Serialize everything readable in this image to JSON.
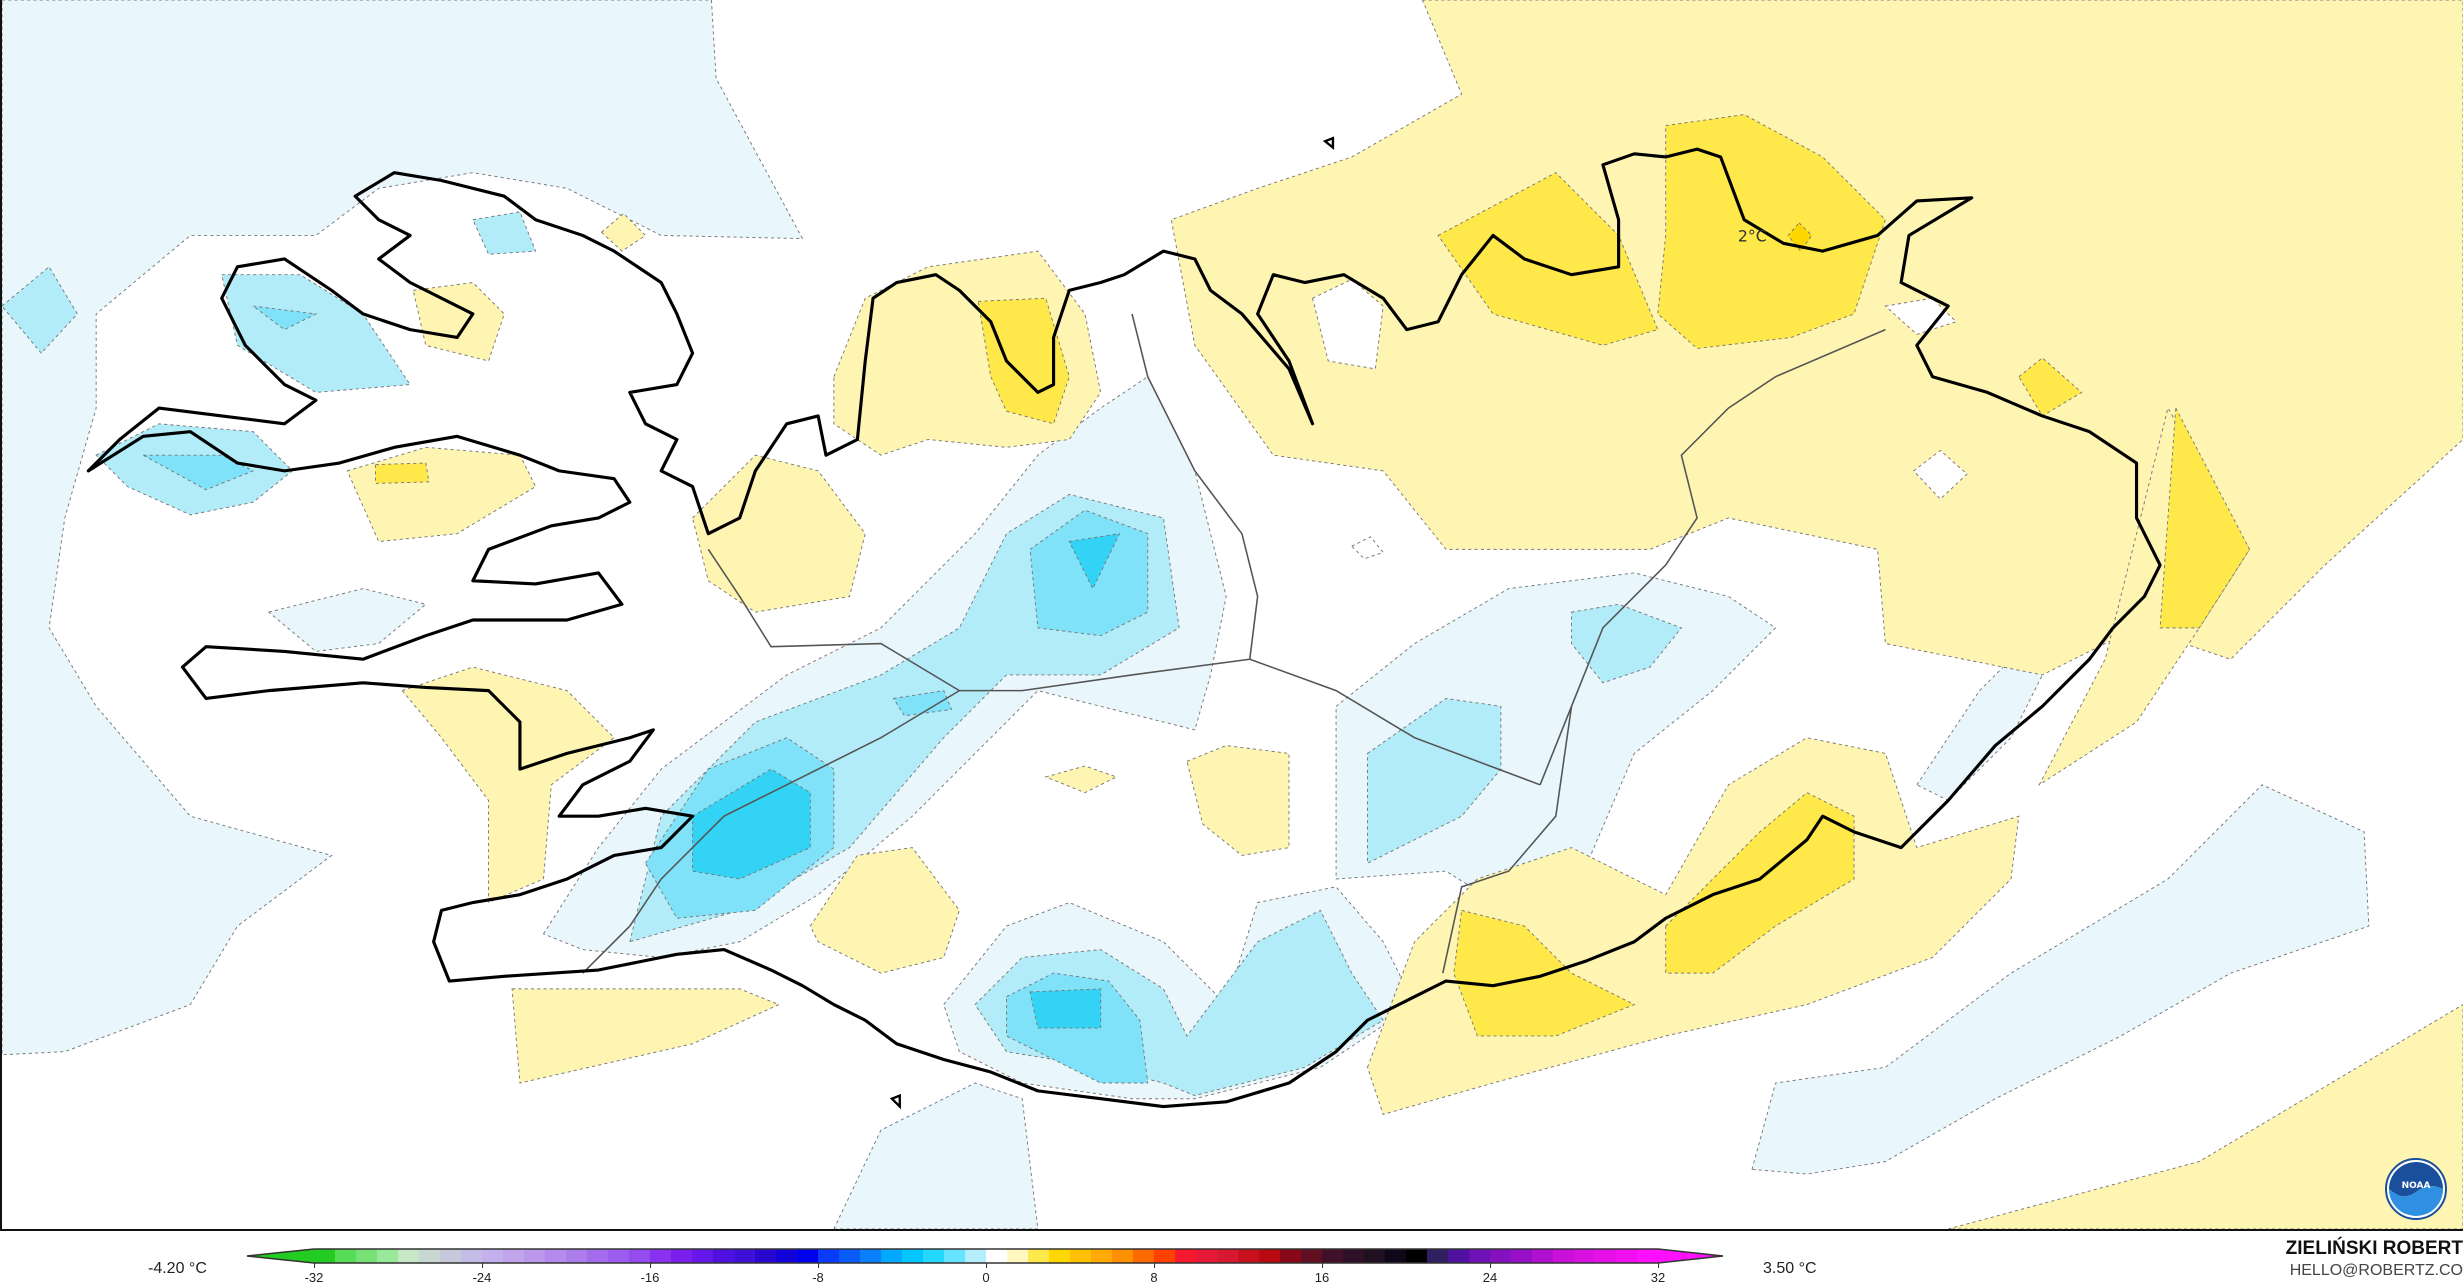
{
  "map": {
    "contour_label": "2°C",
    "fill_colors": {
      "slight_cold": "#e9f7fc",
      "cold1": "#b3ecf9",
      "cold2": "#7fe2f8",
      "cold3": "#33d3f5",
      "slight_warm": "#fff5b3",
      "warm1": "#ffe84a",
      "warm2": "#ffd700",
      "coastline": "#000000"
    }
  },
  "legend": {
    "min_label": "-4.20 °C",
    "max_label": "3.50 °C",
    "ticks": [
      "-32",
      "-24",
      "-16",
      "-8",
      "0",
      "8",
      "16",
      "24",
      "32"
    ],
    "colors": [
      "#22cc22",
      "#55dd55",
      "#77e377",
      "#99e899",
      "#c8e6c8",
      "#c8d8d0",
      "#c8c8dc",
      "#c4bce4",
      "#c4b0ec",
      "#c0a4ec",
      "#bb98ec",
      "#b48aec",
      "#ac7cec",
      "#a46ced",
      "#9c5cee",
      "#944cef",
      "#8c30f0",
      "#7a20ee",
      "#6618ea",
      "#5010e0",
      "#3e10d8",
      "#2808d0",
      "#1400d8",
      "#0000ee",
      "#0a3cff",
      "#0a5cff",
      "#0a80ff",
      "#00a8ff",
      "#00c8ff",
      "#22d8ff",
      "#66e4ff",
      "#b4eefc",
      "#ffffff",
      "#fff8c0",
      "#ffe84a",
      "#ffd700",
      "#ffc000",
      "#ffaa00",
      "#ff9000",
      "#ff6a00",
      "#ff4000",
      "#f81830",
      "#e81838",
      "#d81830",
      "#c81020",
      "#b80810",
      "#880818",
      "#601020",
      "#401028",
      "#301028",
      "#201020",
      "#100818",
      "#000000",
      "#302060",
      "#5010a0",
      "#7010b8",
      "#8410c0",
      "#9810c8",
      "#b010d0",
      "#c810d8",
      "#d810e0",
      "#e810e8",
      "#f010f0",
      "#ff10ff"
    ]
  },
  "credits": {
    "author": "ZIELIŃSKI ROBERT",
    "email": "HELLO@ROBERTZ.CO",
    "logo_text": "NOAA"
  }
}
